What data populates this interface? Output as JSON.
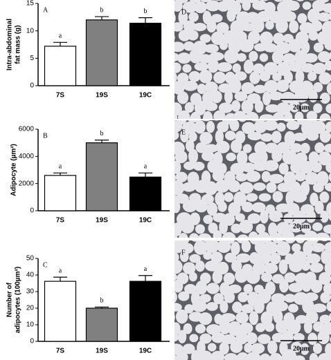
{
  "chart_data": [
    {
      "type": "bar",
      "panel": "A",
      "ylabel": [
        "Intra-abdominal",
        "fat mass (g)"
      ],
      "categories": [
        "7S",
        "19S",
        "19C"
      ],
      "values": [
        7.2,
        12.0,
        11.4
      ],
      "errors": [
        0.7,
        0.6,
        1.0
      ],
      "annotations": [
        "a",
        "b",
        "b"
      ],
      "colors": [
        "#ffffff",
        "#808080",
        "#000000"
      ],
      "ylim": [
        0,
        15
      ],
      "yticks": [
        0,
        5,
        10,
        15
      ]
    },
    {
      "type": "bar",
      "panel": "B",
      "ylabel": [
        "Adipocyte (µm²)"
      ],
      "categories": [
        "7S",
        "19S",
        "19C"
      ],
      "values": [
        2600,
        5000,
        2480
      ],
      "errors": [
        180,
        200,
        300
      ],
      "annotations": [
        "a",
        "b",
        "a"
      ],
      "colors": [
        "#ffffff",
        "#808080",
        "#000000"
      ],
      "ylim": [
        0,
        6000
      ],
      "yticks": [
        0,
        2000,
        4000,
        6000
      ]
    },
    {
      "type": "bar",
      "panel": "C",
      "ylabel": [
        "Number of",
        "adipocytes (100µm²)"
      ],
      "categories": [
        "7S",
        "19S",
        "19C"
      ],
      "values": [
        36.2,
        20.0,
        36.2
      ],
      "errors": [
        2.5,
        0.7,
        3.5
      ],
      "annotations": [
        "a",
        "b",
        "a"
      ],
      "colors": [
        "#ffffff",
        "#808080",
        "#000000"
      ],
      "ylim": [
        0,
        50
      ],
      "yticks": [
        0,
        10,
        20,
        30,
        40,
        50
      ]
    }
  ],
  "micrographs": [
    {
      "label": "D",
      "scale": "20µm"
    },
    {
      "label": "E",
      "scale": "20µm"
    },
    {
      "label": "F",
      "scale": "20µm"
    }
  ]
}
